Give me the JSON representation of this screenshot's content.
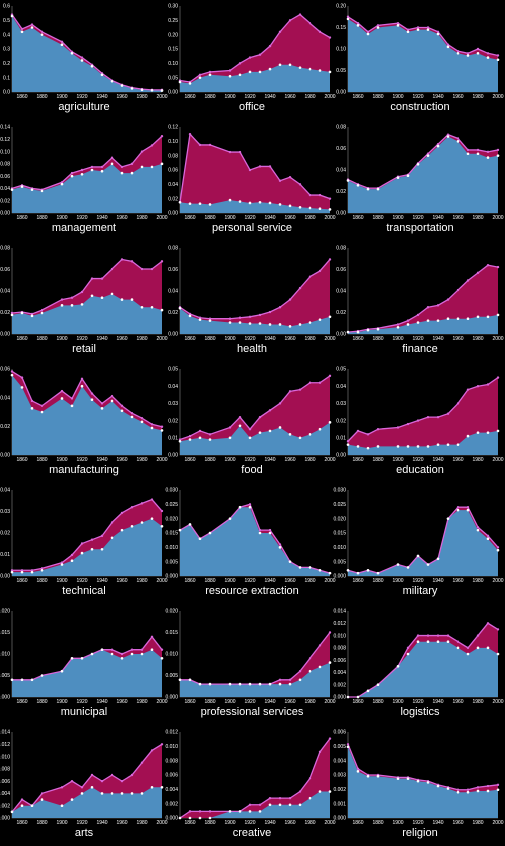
{
  "chart_data": {
    "type": "area",
    "x": [
      1850,
      1860,
      1870,
      1880,
      1900,
      1910,
      1920,
      1930,
      1940,
      1950,
      1960,
      1970,
      1980,
      1990,
      2000
    ],
    "x_ticks": [
      1860,
      1880,
      1900,
      1920,
      1940,
      1960,
      1980,
      2000
    ],
    "colors": {
      "women": "#a30f52",
      "men": "#4e8ec0",
      "outline": "#d966d9",
      "point": "#ffffff"
    },
    "panels": [
      {
        "title": "agriculture",
        "ylim": [
          0,
          0.6
        ],
        "y_ticks": [
          "0.0",
          "0.1",
          "0.2",
          "0.3",
          "0.4",
          "0.5",
          "0.6"
        ],
        "total": [
          0.54,
          0.44,
          0.47,
          0.42,
          0.35,
          0.28,
          0.24,
          0.19,
          0.13,
          0.08,
          0.05,
          0.03,
          0.02,
          0.015,
          0.015
        ],
        "men": [
          0.53,
          0.42,
          0.45,
          0.4,
          0.33,
          0.27,
          0.22,
          0.18,
          0.12,
          0.075,
          0.045,
          0.025,
          0.015,
          0.012,
          0.01
        ]
      },
      {
        "title": "office",
        "ylim": [
          0,
          0.3
        ],
        "y_ticks": [
          "0.00",
          "0.05",
          "0.10",
          "0.15",
          "0.20",
          "0.25",
          "0.30"
        ],
        "total": [
          0.04,
          0.035,
          0.06,
          0.07,
          0.075,
          0.1,
          0.12,
          0.13,
          0.16,
          0.21,
          0.25,
          0.27,
          0.24,
          0.21,
          0.19
        ],
        "men": [
          0.035,
          0.03,
          0.05,
          0.06,
          0.055,
          0.06,
          0.07,
          0.07,
          0.08,
          0.095,
          0.095,
          0.085,
          0.08,
          0.075,
          0.07
        ]
      },
      {
        "title": "construction",
        "ylim": [
          0,
          0.2
        ],
        "y_ticks": [
          "0.00",
          "0.05",
          "0.10",
          "0.15",
          "0.20"
        ],
        "total": [
          0.175,
          0.16,
          0.14,
          0.155,
          0.16,
          0.145,
          0.15,
          0.15,
          0.14,
          0.11,
          0.095,
          0.09,
          0.1,
          0.09,
          0.085
        ],
        "men": [
          0.17,
          0.155,
          0.135,
          0.15,
          0.155,
          0.14,
          0.145,
          0.145,
          0.135,
          0.105,
          0.09,
          0.085,
          0.09,
          0.08,
          0.075
        ]
      },
      {
        "title": "management",
        "ylim": [
          0,
          0.14
        ],
        "y_ticks": [
          "0.00",
          "0.02",
          "0.04",
          "0.06",
          "0.08",
          "0.10",
          "0.12",
          "0.14"
        ],
        "total": [
          0.04,
          0.045,
          0.04,
          0.038,
          0.05,
          0.065,
          0.07,
          0.075,
          0.075,
          0.09,
          0.075,
          0.08,
          0.1,
          0.11,
          0.125
        ],
        "men": [
          0.038,
          0.043,
          0.038,
          0.036,
          0.047,
          0.06,
          0.063,
          0.07,
          0.068,
          0.08,
          0.065,
          0.065,
          0.075,
          0.075,
          0.08
        ]
      },
      {
        "title": "personal service",
        "ylim": [
          0,
          0.12
        ],
        "y_ticks": [
          "0.00",
          "0.02",
          "0.04",
          "0.06",
          "0.08",
          "0.10",
          "0.12"
        ],
        "total": [
          0.015,
          0.11,
          0.095,
          0.095,
          0.085,
          0.085,
          0.06,
          0.065,
          0.065,
          0.045,
          0.05,
          0.04,
          0.025,
          0.025,
          0.02
        ],
        "men": [
          0.015,
          0.013,
          0.013,
          0.012,
          0.018,
          0.016,
          0.014,
          0.015,
          0.014,
          0.012,
          0.01,
          0.008,
          0.007,
          0.006,
          0.005
        ]
      },
      {
        "title": "transportation",
        "ylim": [
          0,
          0.09
        ],
        "y_ticks": [
          "0.00",
          "0.02",
          "0.04",
          "0.06",
          "0.08"
        ],
        "total": [
          0.035,
          0.03,
          0.026,
          0.026,
          0.038,
          0.04,
          0.052,
          0.062,
          0.072,
          0.082,
          0.078,
          0.066,
          0.066,
          0.064,
          0.066
        ],
        "men": [
          0.034,
          0.029,
          0.025,
          0.025,
          0.037,
          0.039,
          0.051,
          0.06,
          0.07,
          0.08,
          0.075,
          0.062,
          0.062,
          0.058,
          0.06
        ]
      },
      {
        "title": "retail",
        "ylim": [
          0,
          0.09
        ],
        "y_ticks": [
          "0.00",
          "0.02",
          "0.04",
          "0.06",
          "0.08"
        ],
        "total": [
          0.022,
          0.023,
          0.021,
          0.025,
          0.036,
          0.038,
          0.044,
          0.058,
          0.058,
          0.068,
          0.078,
          0.076,
          0.068,
          0.068,
          0.076
        ],
        "men": [
          0.02,
          0.022,
          0.019,
          0.022,
          0.03,
          0.03,
          0.031,
          0.04,
          0.038,
          0.042,
          0.036,
          0.036,
          0.028,
          0.028,
          0.025
        ]
      },
      {
        "title": "health",
        "ylim": [
          0,
          0.09
        ],
        "y_ticks": [
          "0.00",
          "0.02",
          "0.04",
          "0.06",
          "0.08"
        ],
        "total": [
          0.028,
          0.021,
          0.017,
          0.016,
          0.016,
          0.017,
          0.018,
          0.02,
          0.023,
          0.028,
          0.036,
          0.048,
          0.06,
          0.066,
          0.078
        ],
        "men": [
          0.027,
          0.019,
          0.015,
          0.014,
          0.012,
          0.012,
          0.011,
          0.011,
          0.01,
          0.01,
          0.008,
          0.01,
          0.012,
          0.015,
          0.018
        ]
      },
      {
        "title": "finance",
        "ylim": [
          0,
          0.09
        ],
        "y_ticks": [
          "0.00",
          "0.02",
          "0.04",
          "0.06",
          "0.08"
        ],
        "total": [
          0.002,
          0.003,
          0.005,
          0.006,
          0.01,
          0.014,
          0.02,
          0.028,
          0.03,
          0.036,
          0.046,
          0.056,
          0.064,
          0.072,
          0.07
        ],
        "men": [
          0.002,
          0.002,
          0.004,
          0.005,
          0.007,
          0.01,
          0.012,
          0.014,
          0.014,
          0.016,
          0.016,
          0.016,
          0.018,
          0.018,
          0.02
        ]
      },
      {
        "title": "manufacturing",
        "ylim": [
          0,
          0.07
        ],
        "y_ticks": [
          "0.00",
          "0.02",
          "0.04",
          "0.06"
        ],
        "total": [
          0.068,
          0.063,
          0.044,
          0.04,
          0.052,
          0.046,
          0.062,
          0.05,
          0.042,
          0.048,
          0.04,
          0.034,
          0.03,
          0.025,
          0.023
        ],
        "men": [
          0.065,
          0.055,
          0.038,
          0.035,
          0.046,
          0.04,
          0.056,
          0.045,
          0.038,
          0.044,
          0.036,
          0.031,
          0.027,
          0.022,
          0.02
        ]
      },
      {
        "title": "food",
        "ylim": [
          0,
          0.05
        ],
        "y_ticks": [
          "0.00",
          "0.01",
          "0.02",
          "0.03",
          "0.04",
          "0.05"
        ],
        "total": [
          0.009,
          0.011,
          0.014,
          0.012,
          0.016,
          0.022,
          0.015,
          0.022,
          0.026,
          0.03,
          0.037,
          0.038,
          0.042,
          0.042,
          0.046
        ],
        "men": [
          0.008,
          0.009,
          0.01,
          0.009,
          0.01,
          0.017,
          0.01,
          0.013,
          0.014,
          0.016,
          0.012,
          0.01,
          0.012,
          0.015,
          0.019
        ]
      },
      {
        "title": "education",
        "ylim": [
          0,
          0.05
        ],
        "y_ticks": [
          "0.00",
          "0.01",
          "0.02",
          "0.03",
          "0.04",
          "0.05"
        ],
        "total": [
          0.008,
          0.014,
          0.012,
          0.015,
          0.016,
          0.018,
          0.02,
          0.022,
          0.022,
          0.024,
          0.03,
          0.038,
          0.04,
          0.041,
          0.045
        ],
        "men": [
          0.006,
          0.005,
          0.004,
          0.005,
          0.005,
          0.005,
          0.005,
          0.005,
          0.006,
          0.006,
          0.006,
          0.011,
          0.013,
          0.013,
          0.014
        ]
      },
      {
        "title": "technical",
        "ylim": [
          0,
          0.045
        ],
        "y_ticks": [
          "0.00",
          "0.01",
          "0.02",
          "0.03",
          "0.04"
        ],
        "total": [
          0.003,
          0.003,
          0.003,
          0.004,
          0.007,
          0.011,
          0.017,
          0.019,
          0.021,
          0.028,
          0.033,
          0.036,
          0.038,
          0.04,
          0.034
        ],
        "men": [
          0.002,
          0.002,
          0.002,
          0.003,
          0.006,
          0.008,
          0.012,
          0.014,
          0.014,
          0.02,
          0.024,
          0.026,
          0.028,
          0.03,
          0.026
        ]
      },
      {
        "title": "resource extraction",
        "ylim": [
          0,
          0.03
        ],
        "y_ticks": [
          "0.000",
          "0.005",
          "0.010",
          "0.015",
          "0.020",
          "0.025",
          "0.030"
        ],
        "total": [
          0.016,
          0.018,
          0.013,
          0.015,
          0.02,
          0.024,
          0.025,
          0.016,
          0.016,
          0.011,
          0.005,
          0.003,
          0.003,
          0.002,
          0.001
        ],
        "men": [
          0.016,
          0.018,
          0.013,
          0.015,
          0.02,
          0.024,
          0.024,
          0.015,
          0.015,
          0.01,
          0.005,
          0.003,
          0.003,
          0.002,
          0.001
        ]
      },
      {
        "title": "military",
        "ylim": [
          0,
          0.03
        ],
        "y_ticks": [
          "0.000",
          "0.005",
          "0.010",
          "0.015",
          "0.020",
          "0.025",
          "0.030"
        ],
        "total": [
          0.002,
          0.001,
          0.002,
          0.001,
          0.004,
          0.003,
          0.007,
          0.004,
          0.006,
          0.02,
          0.024,
          0.024,
          0.017,
          0.014,
          0.01
        ],
        "men": [
          0.002,
          0.001,
          0.002,
          0.001,
          0.004,
          0.003,
          0.007,
          0.004,
          0.006,
          0.02,
          0.023,
          0.023,
          0.016,
          0.013,
          0.009
        ]
      },
      {
        "title": "municipal",
        "ylim": [
          0,
          0.02
        ],
        "y_ticks": [
          "0.000",
          "0.005",
          "0.010",
          "0.015",
          "0.020"
        ],
        "total": [
          0.004,
          0.004,
          0.004,
          0.005,
          0.006,
          0.009,
          0.009,
          0.01,
          0.011,
          0.011,
          0.01,
          0.011,
          0.011,
          0.014,
          0.011
        ],
        "men": [
          0.004,
          0.004,
          0.004,
          0.005,
          0.006,
          0.009,
          0.009,
          0.01,
          0.011,
          0.01,
          0.009,
          0.01,
          0.01,
          0.011,
          0.009
        ]
      },
      {
        "title": "professional services",
        "ylim": [
          0,
          0.02
        ],
        "y_ticks": [
          "0.000",
          "0.005",
          "0.010",
          "0.015",
          "0.020"
        ],
        "total": [
          0.004,
          0.004,
          0.003,
          0.003,
          0.003,
          0.003,
          0.003,
          0.003,
          0.003,
          0.004,
          0.004,
          0.006,
          0.009,
          0.012,
          0.015
        ],
        "men": [
          0.004,
          0.004,
          0.003,
          0.003,
          0.003,
          0.003,
          0.003,
          0.003,
          0.003,
          0.003,
          0.003,
          0.004,
          0.006,
          0.007,
          0.008
        ]
      },
      {
        "title": "logistics",
        "ylim": [
          0,
          0.014
        ],
        "y_ticks": [
          "0.000",
          "0.002",
          "0.004",
          "0.006",
          "0.008",
          "0.010",
          "0.012",
          "0.014"
        ],
        "total": [
          0.0,
          0.0,
          0.001,
          0.002,
          0.005,
          0.008,
          0.01,
          0.01,
          0.01,
          0.01,
          0.009,
          0.008,
          0.01,
          0.012,
          0.011
        ],
        "men": [
          0.0,
          0.0,
          0.001,
          0.002,
          0.005,
          0.007,
          0.009,
          0.009,
          0.009,
          0.009,
          0.008,
          0.007,
          0.008,
          0.008,
          0.007
        ]
      },
      {
        "title": "arts",
        "ylim": [
          0,
          0.014
        ],
        "y_ticks": [
          "0.000",
          "0.002",
          "0.004",
          "0.006",
          "0.008",
          "0.010",
          "0.012",
          "0.014"
        ],
        "total": [
          0.001,
          0.003,
          0.002,
          0.004,
          0.005,
          0.006,
          0.005,
          0.007,
          0.006,
          0.007,
          0.006,
          0.007,
          0.009,
          0.011,
          0.012
        ],
        "men": [
          0.001,
          0.002,
          0.002,
          0.003,
          0.002,
          0.003,
          0.004,
          0.005,
          0.004,
          0.004,
          0.004,
          0.004,
          0.004,
          0.005,
          0.005
        ]
      },
      {
        "title": "creative",
        "ylim": [
          0,
          0.013
        ],
        "y_ticks": [
          "0.000",
          "0.002",
          "0.004",
          "0.006",
          "0.008",
          "0.010",
          "0.012"
        ],
        "total": [
          0.0,
          0.001,
          0.001,
          0.001,
          0.001,
          0.001,
          0.002,
          0.002,
          0.003,
          0.003,
          0.003,
          0.004,
          0.006,
          0.01,
          0.012
        ],
        "men": [
          0.0,
          0.0,
          0.0,
          0.0,
          0.001,
          0.001,
          0.001,
          0.001,
          0.002,
          0.002,
          0.002,
          0.002,
          0.003,
          0.004,
          0.004
        ]
      },
      {
        "title": "religion",
        "ylim": [
          0,
          0.007
        ],
        "y_ticks": [
          "0.000",
          "0.001",
          "0.002",
          "0.003",
          "0.004",
          "0.005",
          "0.006"
        ],
        "total": [
          0.006,
          0.004,
          0.0035,
          0.0035,
          0.0033,
          0.0033,
          0.0031,
          0.003,
          0.0027,
          0.0025,
          0.0023,
          0.0023,
          0.0025,
          0.0026,
          0.0027
        ],
        "men": [
          0.0058,
          0.0038,
          0.0034,
          0.0034,
          0.0032,
          0.0032,
          0.003,
          0.0029,
          0.0026,
          0.0024,
          0.0021,
          0.0021,
          0.0022,
          0.0022,
          0.0023
        ]
      }
    ]
  }
}
